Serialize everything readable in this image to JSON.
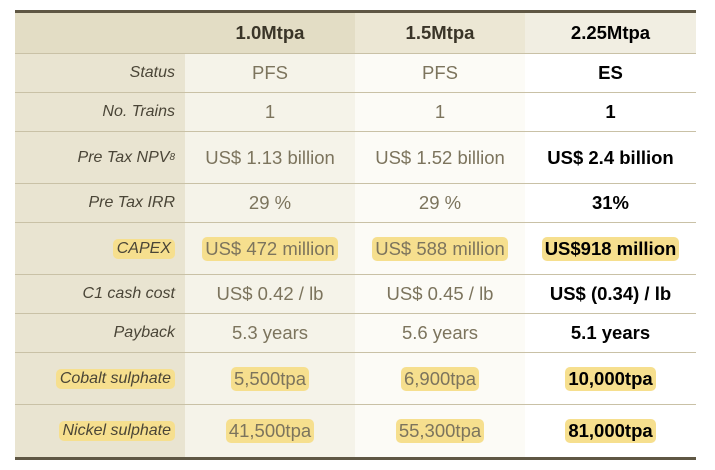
{
  "columns": [
    "",
    "1.0Mtpa",
    "1.5Mtpa",
    "2.25Mtpa"
  ],
  "rows": [
    {
      "label": "Status",
      "values": [
        "PFS",
        "PFS",
        "ES"
      ]
    },
    {
      "label": "No. Trains",
      "values": [
        "1",
        "1",
        "1"
      ]
    },
    {
      "label": "Pre Tax NPV",
      "label_subscript": "8",
      "values": [
        "US$ 1.13 billion",
        "US$ 1.52 billion",
        "US$ 2.4 billion"
      ]
    },
    {
      "label": "Pre Tax IRR",
      "values": [
        "29 %",
        "29 %",
        "31%"
      ]
    },
    {
      "label": "CAPEX",
      "values": [
        "US$ 472 million",
        "US$ 588 million",
        "US$918 million"
      ],
      "highlighted": true
    },
    {
      "label": "C1 cash cost",
      "values": [
        "US$ 0.42 / lb",
        "US$ 0.45 / lb",
        "US$ (0.34) / lb"
      ]
    },
    {
      "label": "Payback",
      "values": [
        "5.3 years",
        "5.6 years",
        "5.1 years"
      ]
    },
    {
      "label": "Cobalt sulphate",
      "values": [
        "5,500tpa",
        "6,900tpa",
        "10,000tpa"
      ],
      "highlighted": true
    },
    {
      "label": "Nickel sulphate",
      "values": [
        "41,500tpa",
        "55,300tpa",
        "81,000tpa"
      ],
      "highlighted": true
    }
  ],
  "colors": {
    "rule": "#5f5744",
    "label_column": "#e9e4d1",
    "highlight": "#f6df8e",
    "muted_text": "#7c745d"
  }
}
